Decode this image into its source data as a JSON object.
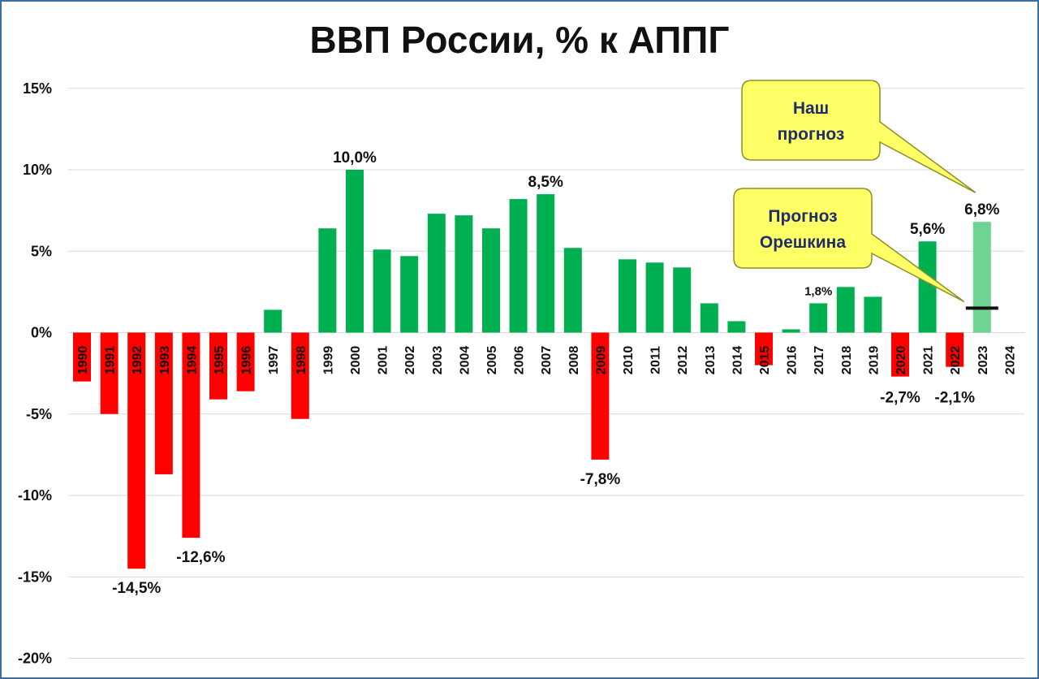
{
  "chart_data": {
    "type": "bar",
    "title": "ВВП России, % к АППГ",
    "xlabel": "",
    "ylabel": "",
    "ylim": [
      -20,
      15
    ],
    "yticks": [
      15,
      10,
      5,
      0,
      -5,
      -10,
      -15,
      -20
    ],
    "ytick_labels": [
      "15%",
      "10%",
      "5%",
      "0%",
      "-5%",
      "-10%",
      "-15%",
      "-20%"
    ],
    "grid": true,
    "categories": [
      "1990",
      "1991",
      "1992",
      "1993",
      "1994",
      "1995",
      "1996",
      "1997",
      "1998",
      "1999",
      "2000",
      "2001",
      "2002",
      "2003",
      "2004",
      "2005",
      "2006",
      "2007",
      "2008",
      "2009",
      "2010",
      "2011",
      "2012",
      "2013",
      "2014",
      "2015",
      "2016",
      "2017",
      "2018",
      "2019",
      "2020",
      "2021",
      "2022",
      "2023",
      "2024"
    ],
    "values": [
      -3.0,
      -5.0,
      -14.5,
      -8.7,
      -12.6,
      -4.1,
      -3.6,
      1.4,
      -5.3,
      6.4,
      10.0,
      5.1,
      4.7,
      7.3,
      7.2,
      6.4,
      8.2,
      8.5,
      5.2,
      -7.8,
      4.5,
      4.3,
      4.0,
      1.8,
      0.7,
      -2.0,
      0.2,
      1.8,
      2.8,
      2.2,
      -2.7,
      5.6,
      -2.1,
      6.8,
      null
    ],
    "colors": {
      "positive": "#00b050",
      "negative": "#ff0000",
      "forecast": "#6fd394",
      "forecast_line": "#111111"
    },
    "data_labels": [
      {
        "category": "1992",
        "text": "-14,5%"
      },
      {
        "category": "1994",
        "text": "-12,6%"
      },
      {
        "category": "2000",
        "text": "10,0%"
      },
      {
        "category": "2007",
        "text": "8,5%"
      },
      {
        "category": "2009",
        "text": "-7,8%"
      },
      {
        "category": "2017",
        "text": "1,8%"
      },
      {
        "category": "2020",
        "text": "-2,7%"
      },
      {
        "category": "2021",
        "text": "5,6%"
      },
      {
        "category": "2022",
        "text": "-2,1%"
      },
      {
        "category": "2023",
        "text": "6,8%"
      }
    ],
    "forecast_marker": {
      "category": "2023",
      "value": 1.5
    },
    "annotations": [
      {
        "lines": [
          "Наш",
          "прогноз"
        ],
        "points_to": "2023 bar top"
      },
      {
        "lines": [
          "Прогноз",
          "Орешкина"
        ],
        "points_to": "2023 marker"
      }
    ]
  }
}
